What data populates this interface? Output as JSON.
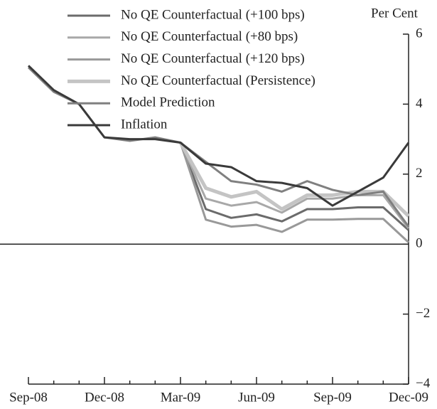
{
  "chart_data": {
    "type": "line",
    "y_label": "Per Cent",
    "categories": [
      "Sep-08",
      null,
      null,
      "Dec-08",
      null,
      null,
      "Mar-09",
      null,
      null,
      "Jun-09",
      null,
      null,
      "Sep-09",
      null,
      null,
      "Dec-09"
    ],
    "series": [
      {
        "name": "No QE Counterfactual (+100 bps)",
        "color": "#6b6b6b",
        "width": 3,
        "values": [
          null,
          null,
          null,
          null,
          null,
          null,
          2.9,
          1.0,
          0.75,
          0.85,
          0.65,
          1.0,
          1.0,
          1.05,
          1.05,
          0.4
        ]
      },
      {
        "name": "No QE Counterfactual (+80 bps)",
        "color": "#a8a8a8",
        "width": 3,
        "values": [
          null,
          null,
          null,
          null,
          null,
          null,
          2.9,
          1.3,
          1.1,
          1.2,
          0.9,
          1.3,
          1.3,
          1.4,
          1.4,
          0.45
        ]
      },
      {
        "name": "No QE Counterfactual (+120 bps)",
        "color": "#999999",
        "width": 3,
        "values": [
          null,
          null,
          null,
          null,
          null,
          null,
          2.9,
          0.7,
          0.5,
          0.55,
          0.35,
          0.7,
          0.7,
          0.72,
          0.72,
          0.05
        ]
      },
      {
        "name": "No QE Counterfactual (Persistence)",
        "color": "#c4c4c4",
        "width": 5,
        "values": [
          null,
          null,
          null,
          null,
          null,
          null,
          2.9,
          1.6,
          1.35,
          1.5,
          1.0,
          1.4,
          1.4,
          1.5,
          1.5,
          0.8
        ]
      },
      {
        "name": "Model Prediction",
        "color": "#808080",
        "width": 3,
        "values": [
          5.05,
          4.35,
          4.0,
          3.05,
          2.95,
          3.05,
          2.9,
          2.35,
          1.8,
          1.7,
          1.5,
          1.8,
          1.55,
          1.4,
          1.5,
          0.5
        ]
      },
      {
        "name": "Inflation",
        "color": "#3a3a3a",
        "width": 3,
        "values": [
          5.1,
          4.4,
          4.0,
          3.05,
          3.0,
          3.0,
          2.9,
          2.3,
          2.2,
          1.8,
          1.75,
          1.6,
          1.1,
          1.5,
          1.9,
          2.9
        ]
      }
    ],
    "ylim": [
      -4,
      6
    ],
    "yticks": [
      {
        "value": -4,
        "label": "−4"
      },
      {
        "value": -2,
        "label": "−2"
      },
      0,
      2,
      4,
      6
    ],
    "grid": false
  }
}
